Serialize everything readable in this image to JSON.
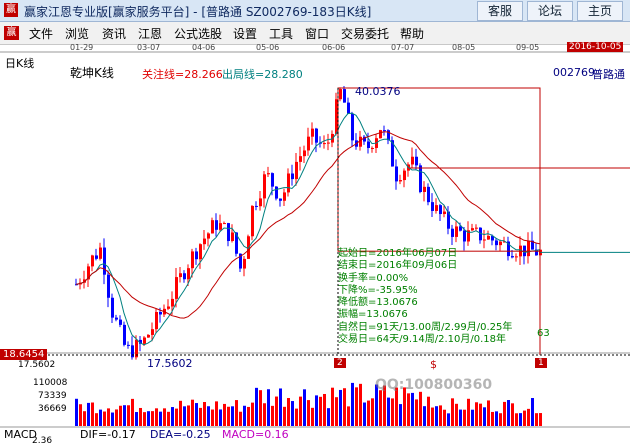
{
  "titlebar": {
    "app_icon": "赢",
    "title": "赢家江恩专业版[赢家服务平台] - [普路通  SZ002769-183日K线]",
    "buttons": [
      "客服",
      "论坛",
      "主页"
    ]
  },
  "menu": {
    "logo": "赢",
    "items": [
      "文件",
      "浏览",
      "资讯",
      "江恩",
      "公式选股",
      "设置",
      "工具",
      "窗口",
      "交易委托",
      "帮助"
    ]
  },
  "chart_data": {
    "type": "candlestick",
    "period_label": "日K线",
    "indicator_name": "乾坤K线",
    "focus_line_label": "关注线=28.266",
    "exit_line_label": "出局线=28.280",
    "stock_code": "002769",
    "stock_name": "普路通",
    "date_ticks": [
      "01-29",
      "03-07",
      "04-06",
      "05-06",
      "06-06",
      "07-07",
      "08-05",
      "09-05"
    ],
    "current_date": "2016-10-05",
    "price_range": [
      17.5602,
      40.0376
    ],
    "high_label": "40.0376",
    "low_label": "17.5602",
    "left_axis_price": "18.6454",
    "left_axis_low": "17.5602",
    "marker_left": "2",
    "marker_right": "1",
    "marker_mid": "$",
    "bar_count_label": "63",
    "stats": [
      "起始日=2016年06月07日",
      "结束日=2016年09月06日",
      "换手率=0.00%",
      "下降%=-35.95%",
      "降低额=13.0676",
      "振幅=13.0676",
      "自然日=91天/13.00周/2.99月/0.25年",
      "交易日=64天/9.14周/2.10月/0.18年"
    ],
    "volume_ticks": [
      "110008",
      "73339",
      "36669"
    ],
    "watermark_qq": "QQ:100800360",
    "macd": {
      "name": "MACD",
      "dif": "DIF=-0.17",
      "dea": "DEA=-0.25",
      "macd": "MACD=0.16",
      "axis_value": "2.36"
    },
    "colors": {
      "up": "#ff0000",
      "down": "#0000ff",
      "ma": "#c00000",
      "ma2": "#008080",
      "box": "#c00000",
      "stats_text": "#008000"
    }
  }
}
